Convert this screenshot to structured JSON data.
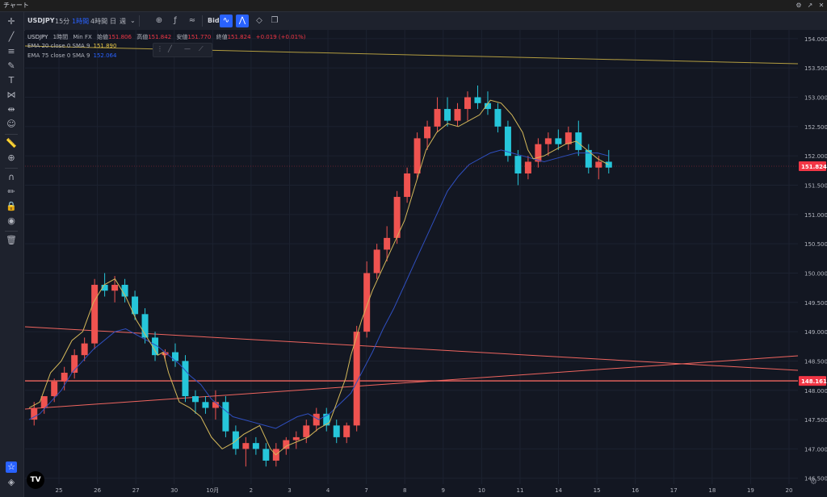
{
  "window": {
    "title": "チャート"
  },
  "toolbar": {
    "symbol": "USDJPY",
    "timeframes": [
      {
        "label": "15分",
        "active": false
      },
      {
        "label": "1時間",
        "active": true
      },
      {
        "label": "4時間",
        "active": false
      },
      {
        "label": "日",
        "active": false
      },
      {
        "label": "週",
        "active": false
      }
    ],
    "bid_label": "Bid"
  },
  "legend": {
    "symbol": "USDJPY",
    "interval": "1時間",
    "source": "Min FX",
    "open_label": "始値",
    "open_value": "151.806",
    "high_label": "高値",
    "high_value": "151.842",
    "low_label": "安値",
    "low_value": "151.770",
    "close_label": "終値",
    "close_value": "151.824",
    "change": "+0.019 (+0.01%)",
    "ema1_label": "EMA 20 close 0 SMA 9",
    "ema1_value": "151.890",
    "ema2_label": "EMA 75 close 0 SMA 9",
    "ema2_value": "152.064"
  },
  "colors": {
    "background": "#131722",
    "grid": "#1c2230",
    "up": "#ef5350",
    "down": "#26c6da",
    "ema20": "#d4b85a",
    "ema75": "#2f4fbf",
    "trend_yellow": "#b39d40",
    "trend_red": "#f0655f",
    "price_tag_red": "#f23645"
  },
  "chart_data": {
    "type": "candlestick",
    "title": "",
    "ylim": [
      146.4,
      154.15
    ],
    "yticks": [
      "154.000",
      "153.500",
      "153.000",
      "152.500",
      "152.000",
      "151.500",
      "151.000",
      "150.500",
      "150.000",
      "149.500",
      "149.000",
      "148.500",
      "148.000",
      "147.500",
      "147.000",
      "146.500"
    ],
    "xticks": [
      "25",
      "26",
      "27",
      "30",
      "10月",
      "2",
      "3",
      "4",
      "7",
      "8",
      "9",
      "10",
      "11",
      "14",
      "15",
      "16",
      "17",
      "18",
      "19",
      "20"
    ],
    "price_labels": [
      "151.824",
      "148.161"
    ],
    "last_price": 151.824,
    "horizontal_level": 148.161,
    "ema20_path": [
      [
        0,
        147.7
      ],
      [
        10,
        147.8
      ],
      [
        20,
        148.3
      ],
      [
        30,
        148.5
      ],
      [
        40,
        148.85
      ],
      [
        50,
        149.0
      ],
      [
        60,
        149.5
      ],
      [
        70,
        149.8
      ],
      [
        80,
        149.9
      ],
      [
        90,
        149.6
      ],
      [
        100,
        149.2
      ],
      [
        110,
        148.9
      ],
      [
        120,
        148.6
      ],
      [
        125,
        148.65
      ],
      [
        130,
        148.3
      ],
      [
        140,
        147.8
      ],
      [
        150,
        147.7
      ],
      [
        160,
        147.55
      ],
      [
        170,
        147.2
      ],
      [
        180,
        147.0
      ],
      [
        190,
        147.1
      ],
      [
        200,
        147.25
      ],
      [
        210,
        147.35
      ],
      [
        215,
        147.4
      ],
      [
        220,
        147.2
      ],
      [
        225,
        147.0
      ],
      [
        230,
        146.9
      ],
      [
        240,
        147.05
      ],
      [
        260,
        147.2
      ],
      [
        270,
        147.35
      ],
      [
        280,
        147.45
      ],
      [
        295,
        148.2
      ],
      [
        300,
        148.6
      ],
      [
        310,
        149.2
      ],
      [
        320,
        149.7
      ],
      [
        330,
        150.1
      ],
      [
        340,
        150.5
      ],
      [
        350,
        150.9
      ],
      [
        355,
        151.2
      ],
      [
        360,
        151.5
      ],
      [
        370,
        152.1
      ],
      [
        380,
        152.4
      ],
      [
        390,
        152.55
      ],
      [
        400,
        152.5
      ],
      [
        410,
        152.6
      ],
      [
        420,
        152.7
      ],
      [
        430,
        152.95
      ],
      [
        440,
        152.9
      ],
      [
        450,
        152.7
      ],
      [
        460,
        152.4
      ],
      [
        465,
        152.1
      ],
      [
        470,
        151.95
      ],
      [
        480,
        152.0
      ],
      [
        490,
        152.1
      ],
      [
        500,
        152.2
      ],
      [
        510,
        152.25
      ],
      [
        520,
        152.1
      ],
      [
        530,
        151.95
      ],
      [
        540,
        151.85
      ]
    ],
    "ema75_path": [
      [
        0,
        147.5
      ],
      [
        10,
        147.6
      ],
      [
        20,
        147.8
      ],
      [
        30,
        148.0
      ],
      [
        40,
        148.3
      ],
      [
        50,
        148.5
      ],
      [
        60,
        148.7
      ],
      [
        70,
        148.85
      ],
      [
        80,
        149.0
      ],
      [
        90,
        149.05
      ],
      [
        100,
        148.95
      ],
      [
        110,
        148.85
      ],
      [
        120,
        148.75
      ],
      [
        130,
        148.6
      ],
      [
        140,
        148.45
      ],
      [
        150,
        148.25
      ],
      [
        160,
        148.1
      ],
      [
        170,
        147.85
      ],
      [
        180,
        147.7
      ],
      [
        190,
        147.55
      ],
      [
        200,
        147.5
      ],
      [
        210,
        147.45
      ],
      [
        220,
        147.4
      ],
      [
        230,
        147.35
      ],
      [
        240,
        147.45
      ],
      [
        250,
        147.55
      ],
      [
        260,
        147.6
      ],
      [
        270,
        147.5
      ],
      [
        280,
        147.6
      ],
      [
        300,
        147.95
      ],
      [
        310,
        148.3
      ],
      [
        320,
        148.65
      ],
      [
        330,
        149.05
      ],
      [
        340,
        149.4
      ],
      [
        350,
        149.8
      ],
      [
        360,
        150.2
      ],
      [
        370,
        150.6
      ],
      [
        380,
        151.0
      ],
      [
        390,
        151.4
      ],
      [
        400,
        151.65
      ],
      [
        410,
        151.85
      ],
      [
        420,
        151.95
      ],
      [
        430,
        152.05
      ],
      [
        440,
        152.1
      ],
      [
        450,
        152.05
      ],
      [
        460,
        152.0
      ],
      [
        470,
        151.95
      ],
      [
        480,
        151.9
      ],
      [
        490,
        151.95
      ],
      [
        500,
        152.0
      ],
      [
        510,
        152.05
      ],
      [
        520,
        152.05
      ],
      [
        530,
        152.05
      ],
      [
        540,
        152.0
      ]
    ],
    "candles": [
      [
        1,
        147.5,
        147.8,
        147.4,
        147.7
      ],
      [
        2,
        147.7,
        147.9,
        147.6,
        147.9
      ],
      [
        3,
        147.9,
        148.2,
        147.8,
        148.15
      ],
      [
        4,
        148.15,
        148.4,
        148.0,
        148.3
      ],
      [
        5,
        148.3,
        148.7,
        148.2,
        148.6
      ],
      [
        6,
        148.6,
        148.9,
        148.5,
        148.8
      ],
      [
        7,
        148.8,
        149.9,
        148.7,
        149.8
      ],
      [
        8,
        149.8,
        150.0,
        149.6,
        149.7
      ],
      [
        9,
        149.7,
        149.95,
        149.5,
        149.8
      ],
      [
        10,
        149.8,
        149.9,
        149.5,
        149.6
      ],
      [
        11,
        149.6,
        149.7,
        149.2,
        149.3
      ],
      [
        12,
        149.3,
        149.4,
        148.8,
        148.9
      ],
      [
        13,
        148.9,
        149.0,
        148.5,
        148.6
      ],
      [
        14,
        148.6,
        148.7,
        148.5,
        148.65
      ],
      [
        15,
        148.65,
        148.8,
        148.4,
        148.5
      ],
      [
        16,
        148.5,
        148.6,
        147.8,
        147.9
      ],
      [
        17,
        147.9,
        148.0,
        147.6,
        147.8
      ],
      [
        18,
        147.8,
        147.9,
        147.6,
        147.7
      ],
      [
        19,
        147.7,
        148.0,
        147.5,
        147.8
      ],
      [
        20,
        147.8,
        147.9,
        147.2,
        147.3
      ],
      [
        21,
        147.3,
        147.4,
        146.9,
        147.0
      ],
      [
        22,
        147.0,
        147.2,
        146.7,
        147.1
      ],
      [
        23,
        147.1,
        147.2,
        146.9,
        147.0
      ],
      [
        24,
        147.0,
        147.1,
        146.7,
        146.8
      ],
      [
        25,
        146.8,
        147.1,
        146.7,
        147.0
      ],
      [
        26,
        147.0,
        147.2,
        146.9,
        147.15
      ],
      [
        27,
        147.15,
        147.3,
        147.0,
        147.2
      ],
      [
        28,
        147.2,
        147.5,
        147.1,
        147.4
      ],
      [
        29,
        147.4,
        147.7,
        147.3,
        147.6
      ],
      [
        30,
        147.6,
        147.7,
        147.3,
        147.4
      ],
      [
        31,
        147.4,
        147.5,
        147.1,
        147.2
      ],
      [
        32,
        147.2,
        147.45,
        147.1,
        147.4
      ],
      [
        33,
        147.4,
        149.1,
        147.3,
        149.0
      ],
      [
        34,
        149.0,
        150.2,
        148.9,
        150.0
      ],
      [
        35,
        150.0,
        150.5,
        149.9,
        150.4
      ],
      [
        36,
        150.4,
        150.8,
        150.2,
        150.6
      ],
      [
        37,
        150.6,
        151.4,
        150.5,
        151.3
      ],
      [
        38,
        151.3,
        151.8,
        151.2,
        151.7
      ],
      [
        39,
        151.7,
        152.4,
        151.6,
        152.3
      ],
      [
        40,
        152.3,
        152.6,
        152.1,
        152.5
      ],
      [
        41,
        152.5,
        153.0,
        152.4,
        152.8
      ],
      [
        42,
        152.8,
        153.0,
        152.5,
        152.6
      ],
      [
        43,
        152.6,
        152.9,
        152.5,
        152.8
      ],
      [
        44,
        152.8,
        153.1,
        152.6,
        153.0
      ],
      [
        45,
        153.0,
        153.2,
        152.8,
        152.9
      ],
      [
        46,
        152.9,
        153.1,
        152.7,
        152.8
      ],
      [
        47,
        152.8,
        152.9,
        152.4,
        152.5
      ],
      [
        48,
        152.5,
        152.6,
        151.9,
        152.0
      ],
      [
        49,
        152.0,
        152.1,
        151.5,
        151.7
      ],
      [
        50,
        151.7,
        152.0,
        151.6,
        151.9
      ],
      [
        51,
        151.9,
        152.3,
        151.8,
        152.2
      ],
      [
        52,
        152.2,
        152.4,
        152.0,
        152.3
      ],
      [
        53,
        152.3,
        152.45,
        152.1,
        152.2
      ],
      [
        54,
        152.2,
        152.5,
        152.1,
        152.4
      ],
      [
        55,
        152.4,
        152.6,
        152.0,
        152.1
      ],
      [
        56,
        152.1,
        152.2,
        151.7,
        151.8
      ],
      [
        57,
        151.8,
        152.0,
        151.6,
        151.9
      ],
      [
        58,
        151.9,
        152.1,
        151.7,
        151.8
      ]
    ]
  }
}
